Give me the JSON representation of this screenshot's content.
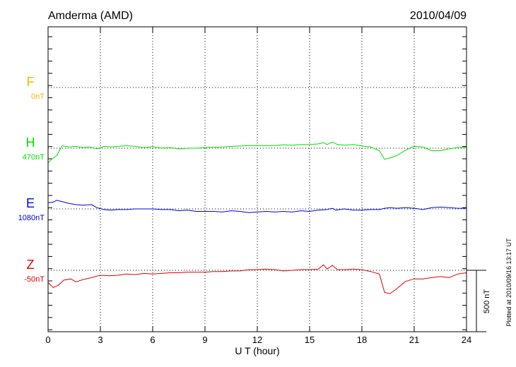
{
  "header": {
    "station": "Amderma (AMD)",
    "date": "2010/04/09"
  },
  "footer": {
    "plotted": "Plotted at 2010/09/16 13:17 UT"
  },
  "chart_data": {
    "type": "line",
    "xlabel": "U T (hour)",
    "xlim": [
      0,
      24
    ],
    "xticks": [
      "0",
      "3",
      "6",
      "9",
      "12",
      "15",
      "18",
      "21",
      "24"
    ],
    "scale_bar": "500 nT",
    "series": [
      {
        "name": "F",
        "baseline": "0nT",
        "color": "#ffb000",
        "points": []
      },
      {
        "name": "H",
        "baseline": "470nT",
        "color": "#00e000",
        "points": [
          [
            0,
            -120
          ],
          [
            0.2,
            -90
          ],
          [
            0.5,
            -60
          ],
          [
            0.8,
            20
          ],
          [
            1.2,
            10
          ],
          [
            1.6,
            15
          ],
          [
            2,
            5
          ],
          [
            2.4,
            10
          ],
          [
            2.8,
            -5
          ],
          [
            3.2,
            15
          ],
          [
            3.6,
            10
          ],
          [
            4,
            15
          ],
          [
            4.5,
            20
          ],
          [
            5,
            15
          ],
          [
            5.5,
            5
          ],
          [
            6,
            12
          ],
          [
            6.5,
            2
          ],
          [
            7,
            5
          ],
          [
            7.5,
            -5
          ],
          [
            8,
            0
          ],
          [
            8.5,
            0
          ],
          [
            9,
            5
          ],
          [
            9.5,
            8
          ],
          [
            10,
            10
          ],
          [
            10.5,
            15
          ],
          [
            11,
            18
          ],
          [
            11.5,
            22
          ],
          [
            12,
            22
          ],
          [
            12.5,
            20
          ],
          [
            13,
            22
          ],
          [
            13.5,
            28
          ],
          [
            14,
            25
          ],
          [
            14.5,
            30
          ],
          [
            15,
            30
          ],
          [
            15.5,
            35
          ],
          [
            15.8,
            45
          ],
          [
            16,
            30
          ],
          [
            16.3,
            50
          ],
          [
            16.6,
            30
          ],
          [
            17,
            25
          ],
          [
            17.5,
            30
          ],
          [
            18,
            18
          ],
          [
            18.5,
            10
          ],
          [
            19,
            -20
          ],
          [
            19.3,
            -90
          ],
          [
            19.6,
            -80
          ],
          [
            20,
            -60
          ],
          [
            20.4,
            -25
          ],
          [
            20.8,
            5
          ],
          [
            21,
            15
          ],
          [
            21.5,
            10
          ],
          [
            22,
            -20
          ],
          [
            22.5,
            -20
          ],
          [
            23,
            -5
          ],
          [
            23.5,
            5
          ],
          [
            24,
            8
          ]
        ]
      },
      {
        "name": "E",
        "baseline": "1080nT",
        "color": "#0000e0",
        "points": [
          [
            0,
            50
          ],
          [
            0.3,
            55
          ],
          [
            0.5,
            70
          ],
          [
            0.8,
            60
          ],
          [
            1.2,
            45
          ],
          [
            1.6,
            35
          ],
          [
            2,
            30
          ],
          [
            2.5,
            35
          ],
          [
            2.8,
            10
          ],
          [
            3.2,
            -5
          ],
          [
            3.6,
            -10
          ],
          [
            4,
            -5
          ],
          [
            4.5,
            -5
          ],
          [
            5,
            0
          ],
          [
            5.5,
            0
          ],
          [
            6,
            0
          ],
          [
            6.5,
            -5
          ],
          [
            7,
            -5
          ],
          [
            7.5,
            -15
          ],
          [
            8,
            -10
          ],
          [
            8.5,
            -20
          ],
          [
            9,
            -20
          ],
          [
            9.5,
            -20
          ],
          [
            10,
            -25
          ],
          [
            10.5,
            -15
          ],
          [
            11,
            -20
          ],
          [
            11.5,
            -30
          ],
          [
            12,
            -25
          ],
          [
            12.5,
            -20
          ],
          [
            13,
            -25
          ],
          [
            13.5,
            -20
          ],
          [
            14,
            -25
          ],
          [
            14.5,
            -15
          ],
          [
            15,
            -20
          ],
          [
            15.5,
            -10
          ],
          [
            16,
            -5
          ],
          [
            16.3,
            5
          ],
          [
            16.5,
            -10
          ],
          [
            17,
            0
          ],
          [
            17.5,
            -10
          ],
          [
            18,
            -10
          ],
          [
            18.5,
            -5
          ],
          [
            19,
            -5
          ],
          [
            19.3,
            5
          ],
          [
            19.6,
            10
          ],
          [
            20,
            5
          ],
          [
            20.5,
            10
          ],
          [
            21,
            5
          ],
          [
            21.5,
            -5
          ],
          [
            22,
            10
          ],
          [
            22.5,
            15
          ],
          [
            23,
            10
          ],
          [
            23.5,
            5
          ],
          [
            24,
            5
          ]
        ]
      },
      {
        "name": "Z",
        "baseline": "-50nT",
        "color": "#e00000",
        "points": [
          [
            0,
            -100
          ],
          [
            0.3,
            -140
          ],
          [
            0.6,
            -120
          ],
          [
            0.9,
            -80
          ],
          [
            1.3,
            -70
          ],
          [
            1.6,
            -95
          ],
          [
            2,
            -75
          ],
          [
            2.5,
            -60
          ],
          [
            3,
            -40
          ],
          [
            3.5,
            -45
          ],
          [
            4,
            -40
          ],
          [
            4.5,
            -30
          ],
          [
            5,
            -35
          ],
          [
            5.5,
            -25
          ],
          [
            6,
            -30
          ],
          [
            6.5,
            -25
          ],
          [
            7,
            -20
          ],
          [
            7.5,
            -20
          ],
          [
            8,
            -15
          ],
          [
            8.5,
            -15
          ],
          [
            9,
            -15
          ],
          [
            9.5,
            -10
          ],
          [
            10,
            -10
          ],
          [
            10.5,
            -5
          ],
          [
            11,
            -5
          ],
          [
            11.5,
            5
          ],
          [
            12,
            5
          ],
          [
            12.5,
            10
          ],
          [
            13,
            5
          ],
          [
            13.5,
            -5
          ],
          [
            14,
            0
          ],
          [
            14.5,
            5
          ],
          [
            15,
            5
          ],
          [
            15.5,
            10
          ],
          [
            15.8,
            45
          ],
          [
            16,
            10
          ],
          [
            16.3,
            40
          ],
          [
            16.6,
            5
          ],
          [
            17,
            5
          ],
          [
            17.5,
            10
          ],
          [
            18,
            5
          ],
          [
            18.5,
            -10
          ],
          [
            19,
            -30
          ],
          [
            19.3,
            -180
          ],
          [
            19.6,
            -190
          ],
          [
            20,
            -150
          ],
          [
            20.5,
            -90
          ],
          [
            21,
            -70
          ],
          [
            21.5,
            -70
          ],
          [
            22,
            -60
          ],
          [
            22.5,
            -50
          ],
          [
            23,
            -60
          ],
          [
            23.5,
            -30
          ],
          [
            24,
            -20
          ]
        ]
      }
    ]
  }
}
